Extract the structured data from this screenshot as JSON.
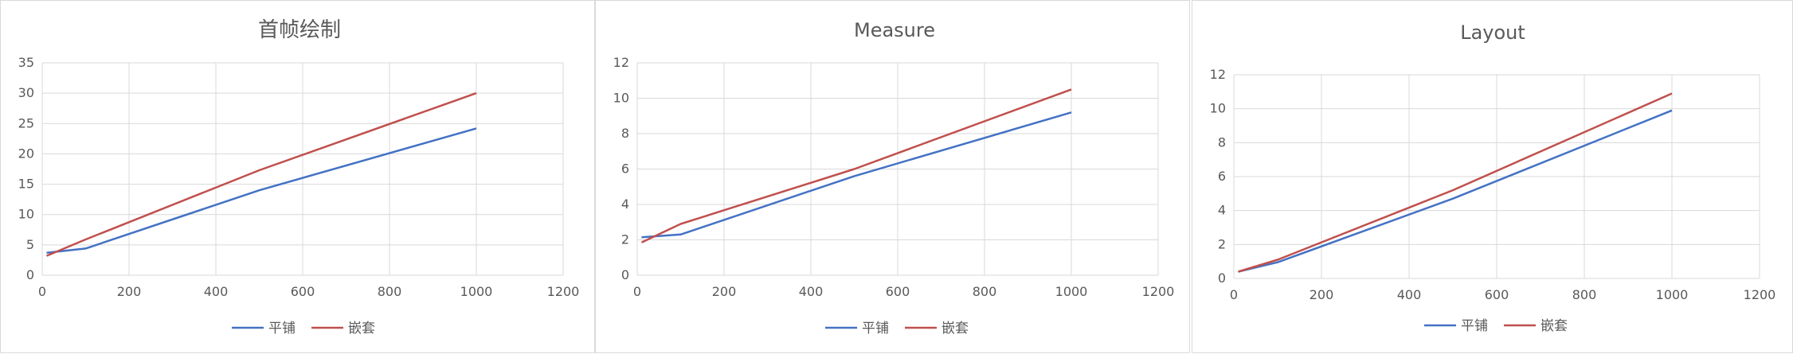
{
  "chart_data": [
    {
      "type": "line",
      "title": "首帧绘制",
      "xlabel": "",
      "ylabel": "",
      "xlim": [
        0,
        1200
      ],
      "ylim": [
        0,
        35
      ],
      "xticks": [
        0,
        200,
        400,
        600,
        800,
        1000,
        1200
      ],
      "yticks": [
        0,
        5,
        10,
        15,
        20,
        25,
        30,
        35
      ],
      "grid": true,
      "legend": "bottom",
      "series": [
        {
          "name": "平铺",
          "color": "#4472c4",
          "points": [
            [
              10,
              3.7
            ],
            [
              100,
              4.4
            ],
            [
              500,
              14
            ],
            [
              1000,
              24.2
            ]
          ]
        },
        {
          "name": "嵌套",
          "color": "#c0504d",
          "points": [
            [
              10,
              3.2
            ],
            [
              100,
              5.9
            ],
            [
              500,
              17.3
            ],
            [
              1000,
              30
            ]
          ]
        }
      ]
    },
    {
      "type": "line",
      "title": "Measure",
      "xlabel": "",
      "ylabel": "",
      "xlim": [
        0,
        1200
      ],
      "ylim": [
        0,
        12
      ],
      "xticks": [
        0,
        200,
        400,
        600,
        800,
        1000,
        1200
      ],
      "yticks": [
        0,
        2,
        4,
        6,
        8,
        10,
        12
      ],
      "grid": true,
      "legend": "bottom",
      "series": [
        {
          "name": "平铺",
          "color": "#4472c4",
          "points": [
            [
              10,
              2.15
            ],
            [
              100,
              2.3
            ],
            [
              500,
              5.6
            ],
            [
              1000,
              9.2
            ]
          ]
        },
        {
          "name": "嵌套",
          "color": "#c0504d",
          "points": [
            [
              10,
              1.85
            ],
            [
              100,
              2.9
            ],
            [
              500,
              6.0
            ],
            [
              1000,
              10.5
            ]
          ]
        }
      ]
    },
    {
      "type": "line",
      "title": "Layout",
      "xlabel": "",
      "ylabel": "",
      "xlim": [
        0,
        1200
      ],
      "ylim": [
        0,
        12
      ],
      "xticks": [
        0,
        200,
        400,
        600,
        800,
        1000,
        1200
      ],
      "yticks": [
        0,
        2,
        4,
        6,
        8,
        10,
        12
      ],
      "grid": true,
      "legend": "bottom",
      "series": [
        {
          "name": "平铺",
          "color": "#4472c4",
          "points": [
            [
              10,
              0.4
            ],
            [
              100,
              0.95
            ],
            [
              500,
              4.7
            ],
            [
              1000,
              9.9
            ]
          ]
        },
        {
          "name": "嵌套",
          "color": "#c0504d",
          "points": [
            [
              10,
              0.4
            ],
            [
              100,
              1.1
            ],
            [
              500,
              5.2
            ],
            [
              1000,
              10.9
            ]
          ]
        }
      ]
    }
  ]
}
